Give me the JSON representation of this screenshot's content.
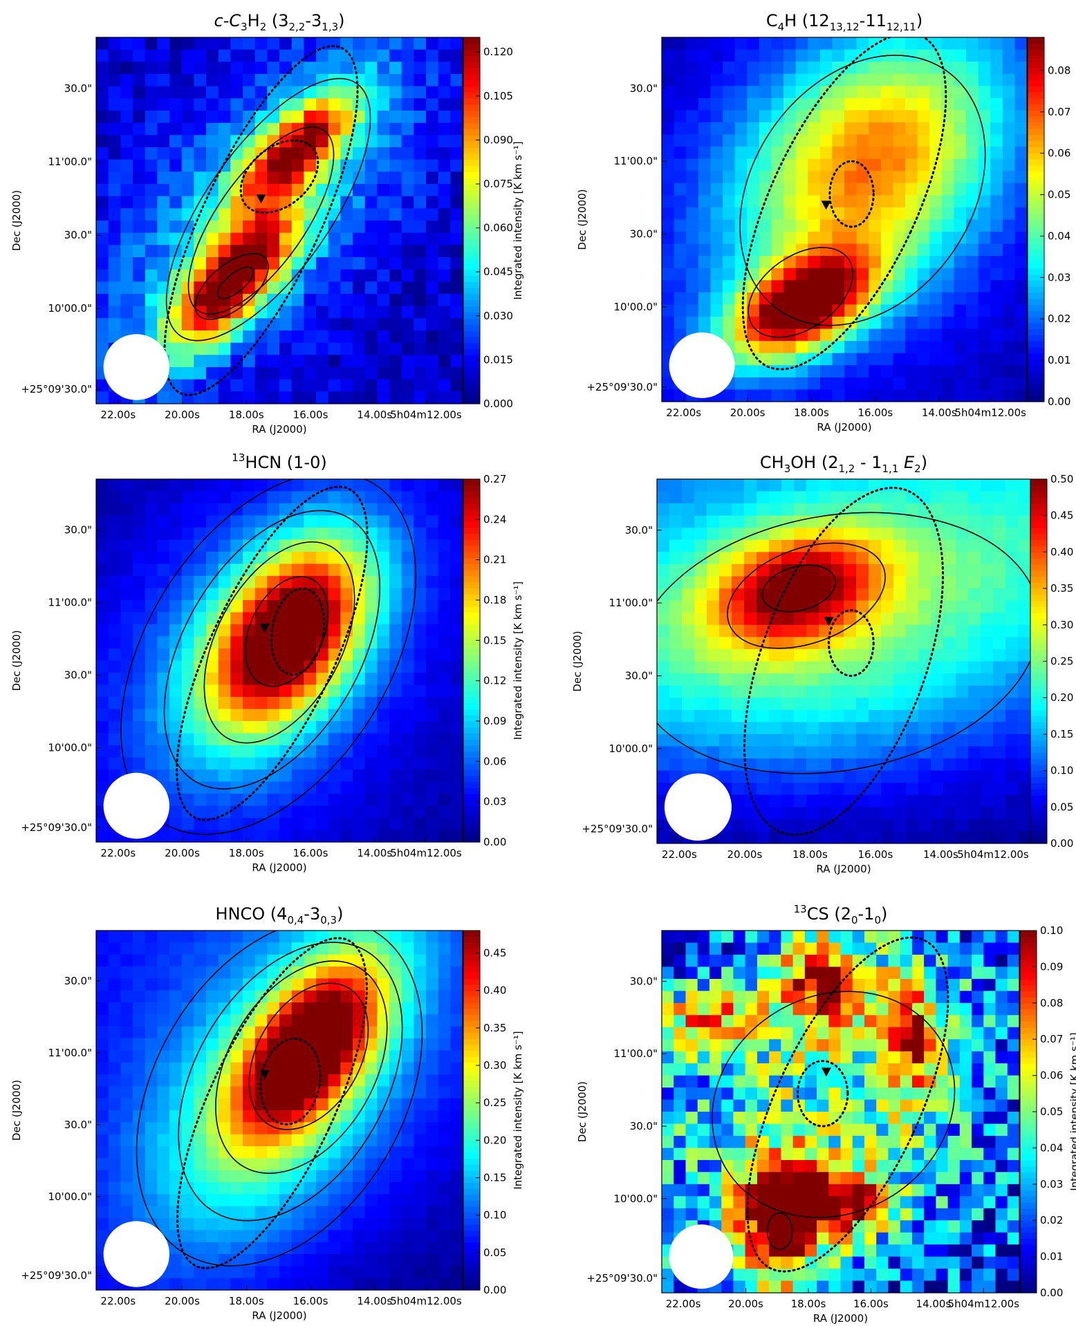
{
  "chart_data": [
    {
      "type": "heatmap",
      "title": {
        "pre": "c-C",
        "s1": "3",
        "mid": "H",
        "s2": "2",
        "rest": " (3",
        "s3": "2,2",
        "mid2": "-3",
        "s4": "1,3",
        "end": ")"
      },
      "xlabel": "RA (J2000)",
      "ylabel": "Dec (J2000)",
      "colorbar_label": "Integrated intensity [K km s⁻¹]",
      "x_ticks": [
        "22.00s",
        "20.00s",
        "18.00s",
        "16.00s",
        "14.00s",
        "5h04m12.00s"
      ],
      "y_ticks": [
        "30.0\"",
        "11'00.0\"",
        "30.0\"",
        "10'00.0\"",
        "+25°09'30.0\""
      ],
      "colorbar_ticks": [
        "0.120",
        "0.105",
        "0.090",
        "0.075",
        "0.060",
        "0.045",
        "0.030",
        "0.015",
        "0.000"
      ],
      "vmin": 0.0,
      "vmax": 0.125,
      "colormap": "jet",
      "peak": {
        "x": 0.37,
        "y": 0.67,
        "value": 0.12
      },
      "peak_secondary": {
        "x": 0.57,
        "y": 0.3,
        "value": 0.1
      },
      "grid": false
    },
    {
      "type": "heatmap",
      "title": {
        "pre": "C",
        "s1": "4",
        "mid": "H (12",
        "s2": "13,12",
        "rest": "-11",
        "s3": "12,11",
        "end": ")"
      },
      "xlabel": "RA (J2000)",
      "ylabel": "Dec (J2000)",
      "colorbar_label": "Integrated intensity [K km s⁻¹]",
      "x_ticks": [
        "22.00s",
        "20.00s",
        "18.00s",
        "16.00s",
        "14.00s",
        "5h04m12.00s"
      ],
      "y_ticks": [
        "30.0\"",
        "11'00.0\"",
        "30.0\"",
        "10'00.0\"",
        "+25°09'30.0\""
      ],
      "colorbar_ticks": [
        "0.08",
        "0.07",
        "0.06",
        "0.05",
        "0.04",
        "0.03",
        "0.02",
        "0.01",
        "0.00"
      ],
      "vmin": 0.0,
      "vmax": 0.088,
      "colormap": "jet",
      "peak": {
        "x": 0.37,
        "y": 0.74,
        "value": 0.085
      },
      "grid": false
    },
    {
      "type": "heatmap",
      "title": {
        "pre": "H",
        "sup": "13",
        "mid": "CN (1-0)"
      },
      "xlabel": "RA (J2000)",
      "ylabel": "Dec (J2000)",
      "colorbar_label": "Integrated intensity [K km s⁻¹]",
      "x_ticks": [
        "22.00s",
        "20.00s",
        "18.00s",
        "16.00s",
        "14.00s",
        "5h04m12.00s"
      ],
      "y_ticks": [
        "30.0\"",
        "11'00.0\"",
        "30.0\"",
        "10'00.0\"",
        "+25°09'30.0\""
      ],
      "colorbar_ticks": [
        "0.27",
        "0.24",
        "0.21",
        "0.18",
        "0.15",
        "0.12",
        "0.09",
        "0.06",
        "0.03",
        "0.00"
      ],
      "vmin": 0.0,
      "vmax": 0.27,
      "colormap": "jet",
      "peak": {
        "x": 0.52,
        "y": 0.42,
        "value": 0.27
      },
      "grid": false
    },
    {
      "type": "heatmap",
      "title": {
        "pre": "CH",
        "s1": "3",
        "mid": "OH (2",
        "s2": "1,2",
        "rest": " - 1",
        "s3": "1,1",
        "it": " E",
        "s4": "2",
        "end": ")"
      },
      "xlabel": "RA (J2000)",
      "ylabel": "Dec (J2000)",
      "colorbar_label": "Integrated intensity [K km s⁻¹]",
      "x_ticks": [
        "22.00s",
        "20.00s",
        "18.00s",
        "16.00s",
        "14.00s",
        "5h04m12.00s"
      ],
      "y_ticks": [
        "30.0\"",
        "11'00.0\"",
        "30.0\"",
        "10'00.0\"",
        "+25°09'30.0\""
      ],
      "colorbar_ticks": [
        "0.50",
        "0.45",
        "0.40",
        "0.35",
        "0.30",
        "0.25",
        "0.20",
        "0.15",
        "0.10",
        "0.05",
        "0.00"
      ],
      "vmin": 0.0,
      "vmax": 0.5,
      "colormap": "jet",
      "peak": {
        "x": 0.37,
        "y": 0.3,
        "value": 0.5
      },
      "grid": false
    },
    {
      "type": "heatmap",
      "title": {
        "pre": "HNCO (4",
        "s1": "0,4",
        "mid": "-3",
        "s2": "0,3",
        "end": ")"
      },
      "xlabel": "RA (J2000)",
      "ylabel": "Dec (J2000)",
      "colorbar_label": "Integrated intensity [K km s⁻¹]",
      "x_ticks": [
        "22.00s",
        "20.00s",
        "18.00s",
        "16.00s",
        "14.00s",
        "5h04m12.00s"
      ],
      "y_ticks": [
        "30.0\"",
        "11'00.0\"",
        "30.0\"",
        "10'00.0\"",
        "+25°09'30.0\""
      ],
      "colorbar_ticks": [
        "0.45",
        "0.40",
        "0.35",
        "0.30",
        "0.25",
        "0.20",
        "0.15",
        "0.10",
        "0.05",
        "0.00"
      ],
      "vmin": 0.0,
      "vmax": 0.48,
      "colormap": "jet",
      "peak": {
        "x": 0.6,
        "y": 0.33,
        "value": 0.48
      },
      "grid": false
    },
    {
      "type": "heatmap",
      "title": {
        "sup": "13",
        "pre": "CS (2",
        "s1": "0",
        "mid": "-1",
        "s2": "0",
        "end": ")"
      },
      "xlabel": "RA (J2000)",
      "ylabel": "Dec (J2000)",
      "colorbar_label": "Integrated intensity [K km s⁻¹]",
      "x_ticks": [
        "22.00s",
        "20.00s",
        "18.00s",
        "16.00s",
        "14.00s",
        "5h04m12.00s"
      ],
      "y_ticks": [
        "30.0\"",
        "11'00.0\"",
        "30.0\"",
        "10'00.0\"",
        "+25°09'30.0\""
      ],
      "colorbar_ticks": [
        "0.10",
        "0.09",
        "0.08",
        "0.07",
        "0.06",
        "0.05",
        "0.04",
        "0.03",
        "0.02",
        "0.01",
        "0.00"
      ],
      "vmin": 0.0,
      "vmax": 0.1,
      "colormap": "jet",
      "peak": {
        "x": 0.35,
        "y": 0.85,
        "value": 0.1
      },
      "grid": false
    }
  ]
}
